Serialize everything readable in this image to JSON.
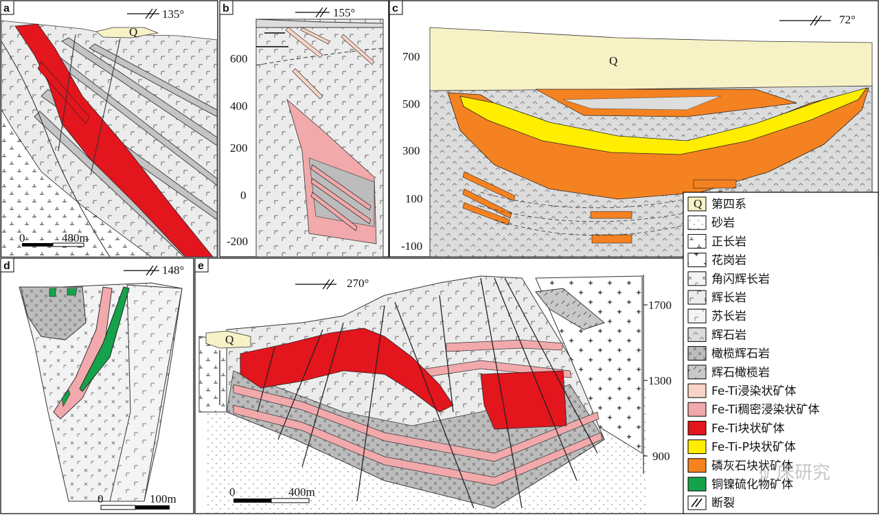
{
  "panels": {
    "a": {
      "label": "a",
      "azimuth": "135°",
      "scale_start": "0",
      "scale_end": "480m",
      "q_label": "Q"
    },
    "b": {
      "label": "b",
      "azimuth": "155°",
      "ticks": [
        "600",
        "400",
        "200",
        "0",
        "-200"
      ]
    },
    "c": {
      "label": "c",
      "azimuth": "72°",
      "ticks": [
        "700",
        "500",
        "300",
        "100",
        "-100"
      ],
      "q_label": "Q"
    },
    "d": {
      "label": "d",
      "azimuth": "148°",
      "scale_start": "0",
      "scale_end": "100m"
    },
    "e": {
      "label": "e",
      "azimuth": "270°",
      "ticks": [
        "1700",
        "1300",
        "900"
      ],
      "scale_start": "0",
      "scale_end": "400m",
      "q_label": "Q"
    }
  },
  "legend": [
    {
      "symbol": "Q",
      "label": "第四系",
      "color": "#f7f1c6"
    },
    {
      "symbol": "sandstone",
      "label": "砂岩",
      "color": "#ffffff"
    },
    {
      "symbol": "syenite",
      "label": "正长岩",
      "color": "#ffffff"
    },
    {
      "symbol": "granite",
      "label": "花岗岩",
      "color": "#ffffff"
    },
    {
      "symbol": "hornblende-gabbro",
      "label": "角闪辉长岩",
      "color": "#f0f0f0"
    },
    {
      "symbol": "gabbro",
      "label": "辉长岩",
      "color": "#ececec"
    },
    {
      "symbol": "norite",
      "label": "苏长岩",
      "color": "#e6e6e6"
    },
    {
      "symbol": "pyroxenite",
      "label": "辉石岩",
      "color": "#dddddd"
    },
    {
      "symbol": "olivine-pyroxenite",
      "label": "橄榄辉石岩",
      "color": "#bdbdbd"
    },
    {
      "symbol": "wehrlite",
      "label": "辉石橄榄岩",
      "color": "#c8c8c8"
    },
    {
      "symbol": "disseminated",
      "label": "Fe-Ti浸染状矿体",
      "color": "#f9d3c4"
    },
    {
      "symbol": "dense-disseminated",
      "label": "Fe-Ti稠密浸染状矿体",
      "color": "#f1a9ab"
    },
    {
      "symbol": "massive",
      "label": "Fe-Ti块状矿体",
      "color": "#e3151d"
    },
    {
      "symbol": "fe-ti-p",
      "label": "Fe-Ti-P块状矿体",
      "color": "#ffee00"
    },
    {
      "symbol": "apatite",
      "label": "磷灰石块状矿体",
      "color": "#f58220"
    },
    {
      "symbol": "cu-ni",
      "label": "铜镍硫化物矿体",
      "color": "#14a34a"
    },
    {
      "symbol": "fault",
      "label": "断裂",
      "color": "#000000"
    }
  ],
  "watermark": "矿床研究"
}
